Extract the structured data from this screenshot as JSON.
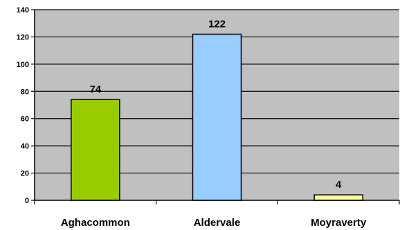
{
  "chart_data": {
    "type": "bar",
    "title": "",
    "xlabel": "",
    "ylabel": "",
    "categories": [
      "Aghacommon",
      "Aldervale",
      "Moyraverty"
    ],
    "values": [
      74,
      122,
      4
    ],
    "data_labels": [
      "74",
      "122",
      "4"
    ],
    "bar_colors": [
      "#99cc00",
      "#99ccff",
      "#ffff99"
    ],
    "plot_background": "#c0c0c0",
    "gridline_color": "#000000",
    "ylim": [
      0,
      140
    ],
    "yticks": [
      0,
      20,
      40,
      60,
      80,
      100,
      120,
      140
    ],
    "ytick_labels": [
      "0",
      "20",
      "40",
      "60",
      "80",
      "100",
      "120",
      "140"
    ],
    "grid": true,
    "legend": "none"
  }
}
